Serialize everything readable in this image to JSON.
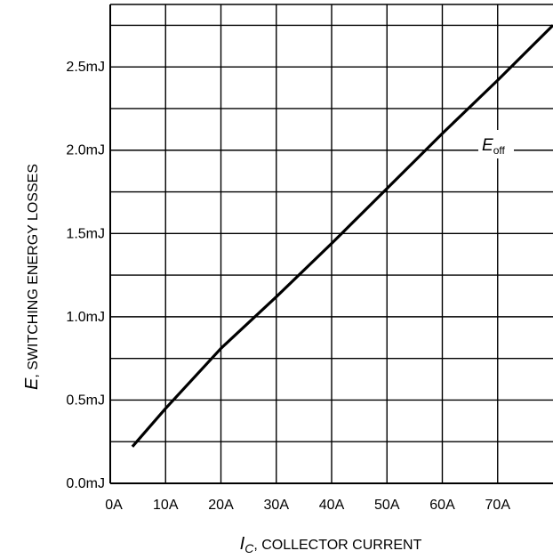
{
  "chart_data": {
    "type": "line",
    "xlabel": {
      "var": "I",
      "sub": "C",
      "text": ", COLLECTOR CURRENT"
    },
    "ylabel": {
      "var": "E",
      "text": ", SWITCHING ENERGY LOSSES"
    },
    "xlim": [
      0,
      80
    ],
    "ylim": [
      0.0,
      2.875
    ],
    "x_ticks": [
      0,
      10,
      20,
      30,
      40,
      50,
      60,
      70
    ],
    "x_tick_labels": [
      "0A",
      "10A",
      "20A",
      "30A",
      "40A",
      "50A",
      "60A",
      "70A"
    ],
    "y_ticks": [
      0.0,
      0.5,
      1.0,
      1.5,
      2.0,
      2.5
    ],
    "y_tick_labels": [
      "0.0mJ",
      "0.5mJ",
      "1.0mJ",
      "1.5mJ",
      "2.0mJ",
      "2.5mJ"
    ],
    "grid": true,
    "grid_x_step": 10,
    "grid_y_step": 0.25,
    "series": [
      {
        "name": "Eoff",
        "label_main": "E",
        "label_sub": "off",
        "color": "#000000",
        "x": [
          4,
          10,
          20,
          30,
          40,
          50,
          60,
          70,
          80
        ],
        "y": [
          0.22,
          0.45,
          0.81,
          1.12,
          1.44,
          1.77,
          2.1,
          2.42,
          2.75
        ]
      }
    ]
  }
}
